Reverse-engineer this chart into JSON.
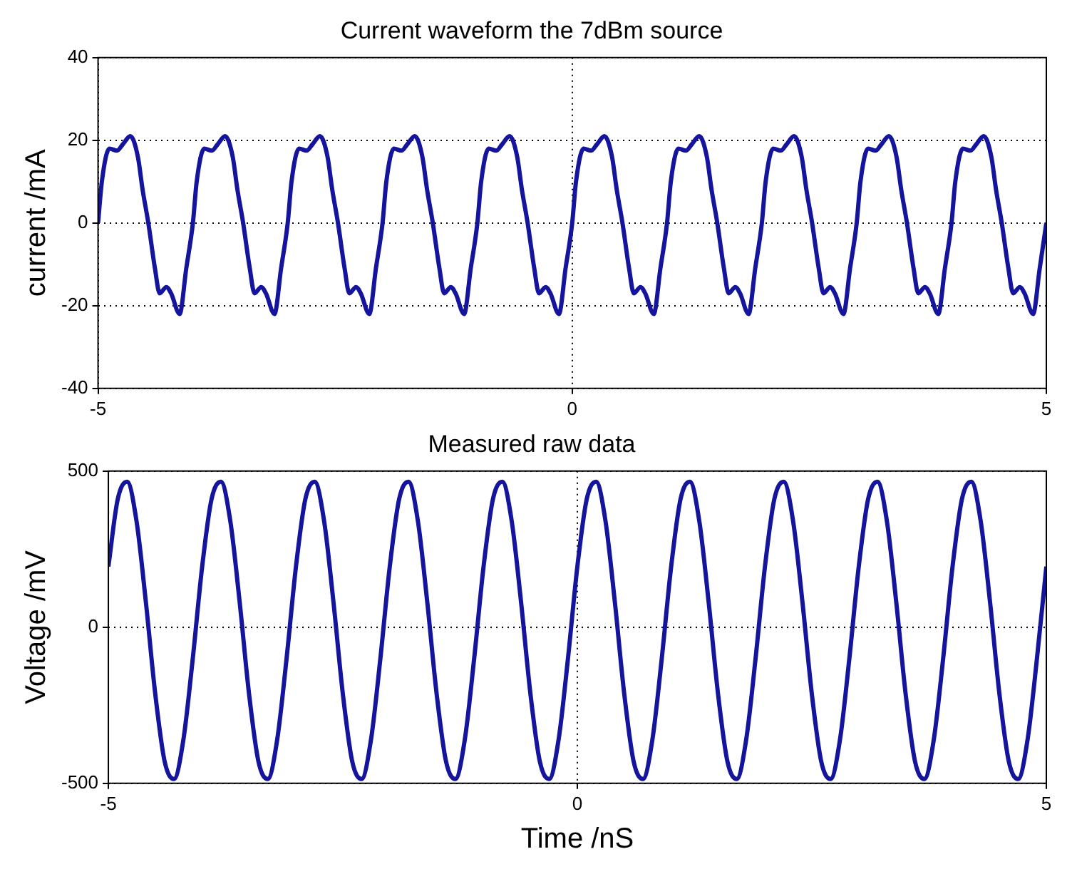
{
  "chart_data": [
    {
      "type": "line",
      "title": "Current waveform the 7dBm source",
      "ylabel": "current /mA",
      "xlim": [
        -5,
        5
      ],
      "xticks": [
        -5,
        0,
        5
      ],
      "ylim": [
        -40,
        40
      ],
      "yticks": [
        -40,
        -20,
        0,
        20,
        40
      ],
      "grid": true,
      "line_style": "solid",
      "marker": "none",
      "series": [
        {
          "color": "#14149c",
          "x": [
            -5,
            -4.96,
            -4.88,
            -4.8,
            -4.74,
            -4.66,
            -4.58,
            -4.53,
            -4.47,
            -4.4,
            -4.35,
            -4.28,
            -4.23,
            -4.14,
            -4.07,
            -4,
            -3.96,
            -3.88,
            -3.8,
            -3.74,
            -3.66,
            -3.58,
            -3.53,
            -3.47,
            -3.4,
            -3.35,
            -3.28,
            -3.23,
            -3.14,
            -3.07,
            -3,
            -2.96,
            -2.88,
            -2.8,
            -2.74,
            -2.66,
            -2.58,
            -2.53,
            -2.47,
            -2.4,
            -2.35,
            -2.28,
            -2.23,
            -2.14,
            -2.07,
            -2,
            -1.96,
            -1.88,
            -1.8,
            -1.74,
            -1.66,
            -1.58,
            -1.53,
            -1.47,
            -1.4,
            -1.35,
            -1.28,
            -1.23,
            -1.14,
            -1.07,
            -1,
            -0.96,
            -0.88,
            -0.8,
            -0.74,
            -0.66,
            -0.58,
            -0.53,
            -0.47,
            -0.4,
            -0.35,
            -0.28,
            -0.23,
            -0.14,
            -0.07,
            0,
            0.04,
            0.12,
            0.2,
            0.26,
            0.34,
            0.42,
            0.47,
            0.53,
            0.6,
            0.65,
            0.72,
            0.77,
            0.86,
            0.93,
            1,
            1.04,
            1.12,
            1.2,
            1.26,
            1.34,
            1.42,
            1.47,
            1.53,
            1.6,
            1.65,
            1.72,
            1.77,
            1.86,
            1.93,
            2,
            2.04,
            2.12,
            2.2,
            2.26,
            2.34,
            2.42,
            2.47,
            2.53,
            2.6,
            2.65,
            2.72,
            2.77,
            2.86,
            2.93,
            3,
            3.04,
            3.12,
            3.2,
            3.26,
            3.34,
            3.42,
            3.47,
            3.53,
            3.6,
            3.65,
            3.72,
            3.77,
            3.86,
            3.93,
            4,
            4.04,
            4.12,
            4.2,
            4.26,
            4.34,
            4.42,
            4.47,
            4.53,
            4.6,
            4.65,
            4.72,
            4.77,
            4.86,
            4.93,
            5
          ],
          "values": [
            0,
            10,
            18,
            17.5,
            19,
            21,
            16,
            8,
            0,
            -11,
            -17,
            -15.5,
            -17,
            -22,
            -11,
            0,
            10,
            18,
            17.5,
            19,
            21,
            16,
            8,
            0,
            -11,
            -17,
            -15.5,
            -17,
            -22,
            -11,
            0,
            10,
            18,
            17.5,
            19,
            21,
            16,
            8,
            0,
            -11,
            -17,
            -15.5,
            -17,
            -22,
            -11,
            0,
            10,
            18,
            17.5,
            19,
            21,
            16,
            8,
            0,
            -11,
            -17,
            -15.5,
            -17,
            -22,
            -11,
            0,
            10,
            18,
            17.5,
            19,
            21,
            16,
            8,
            0,
            -11,
            -17,
            -15.5,
            -17,
            -22,
            -11,
            0,
            10,
            18,
            17.5,
            19,
            21,
            16,
            8,
            0,
            -11,
            -17,
            -15.5,
            -17,
            -22,
            -11,
            0,
            10,
            18,
            17.5,
            19,
            21,
            16,
            8,
            0,
            -11,
            -17,
            -15.5,
            -17,
            -22,
            -11,
            0,
            10,
            18,
            17.5,
            19,
            21,
            16,
            8,
            0,
            -11,
            -17,
            -15.5,
            -17,
            -22,
            -11,
            0,
            10,
            18,
            17.5,
            19,
            21,
            16,
            8,
            0,
            -11,
            -17,
            -15.5,
            -17,
            -22,
            -11,
            0,
            10,
            18,
            17.5,
            19,
            21,
            16,
            8,
            0,
            -11,
            -17,
            -15.5,
            -17,
            -22,
            -11,
            0
          ]
        }
      ]
    },
    {
      "type": "line",
      "title": "Measured raw data",
      "xlabel": "Time /nS",
      "ylabel": "Voltage /mV",
      "xlim": [
        -5,
        5
      ],
      "xticks": [
        -5,
        0,
        5
      ],
      "ylim": [
        -500,
        500
      ],
      "yticks": [
        -500,
        0,
        500
      ],
      "grid": true,
      "line_style": "solid",
      "marker": "none",
      "series": [
        {
          "color": "#14149c",
          "x": [
            -5,
            -4.9,
            -4.8,
            -4.7,
            -4.6,
            -4.5,
            -4.4,
            -4.3,
            -4.2,
            -4.1,
            -4,
            -3.9,
            -3.8,
            -3.7,
            -3.6,
            -3.5,
            -3.4,
            -3.3,
            -3.2,
            -3.1,
            -3,
            -2.9,
            -2.8,
            -2.7,
            -2.6,
            -2.5,
            -2.4,
            -2.3,
            -2.2,
            -2.1,
            -2,
            -1.9,
            -1.8,
            -1.7,
            -1.6,
            -1.5,
            -1.4,
            -1.3,
            -1.2,
            -1.1,
            -1,
            -0.9,
            -0.8,
            -0.7,
            -0.6,
            -0.5,
            -0.4,
            -0.3,
            -0.2,
            -0.1,
            0,
            0.1,
            0.2,
            0.3,
            0.4,
            0.5,
            0.6,
            0.7,
            0.8,
            0.9,
            1,
            1.1,
            1.2,
            1.3,
            1.4,
            1.5,
            1.6,
            1.7,
            1.8,
            1.9,
            2,
            2.1,
            2.2,
            2.3,
            2.4,
            2.5,
            2.6,
            2.7,
            2.8,
            2.9,
            3,
            3.1,
            3.2,
            3.3,
            3.4,
            3.5,
            3.6,
            3.7,
            3.8,
            3.9,
            4,
            4.1,
            4.2,
            4.3,
            4.4,
            4.5,
            4.6,
            4.7,
            4.8,
            4.9,
            5
          ],
          "values": [
            194,
            410,
            466,
            340,
            80,
            -214,
            -430,
            -486,
            -360,
            -100,
            194,
            410,
            466,
            340,
            80,
            -214,
            -430,
            -486,
            -360,
            -100,
            194,
            410,
            466,
            340,
            80,
            -214,
            -430,
            -486,
            -360,
            -100,
            194,
            410,
            466,
            340,
            80,
            -214,
            -430,
            -486,
            -360,
            -100,
            194,
            410,
            466,
            340,
            80,
            -214,
            -430,
            -486,
            -360,
            -100,
            194,
            410,
            466,
            340,
            80,
            -214,
            -430,
            -486,
            -360,
            -100,
            194,
            410,
            466,
            340,
            80,
            -214,
            -430,
            -486,
            -360,
            -100,
            194,
            410,
            466,
            340,
            80,
            -214,
            -430,
            -486,
            -360,
            -100,
            194,
            410,
            466,
            340,
            80,
            -214,
            -430,
            -486,
            -360,
            -100,
            194,
            410,
            466,
            340,
            80,
            -214,
            -430,
            -486,
            -360,
            -100,
            194
          ]
        }
      ]
    }
  ]
}
